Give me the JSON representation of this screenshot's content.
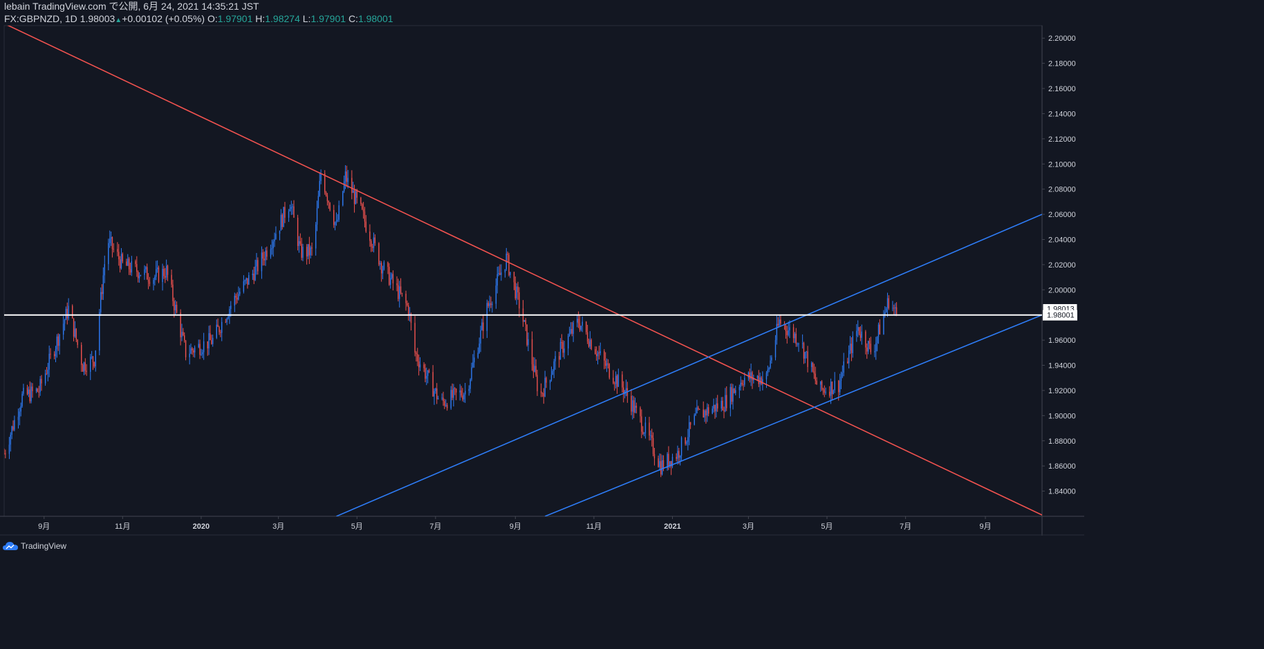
{
  "header": {
    "published": "lebain TradingView.com で公開, 6月 24, 2021 14:35:21 JST",
    "symbol": "FX:GBPNZD, 1D",
    "last": "1.98003",
    "change": "+0.00102 (+0.05%)",
    "o_label": "O:",
    "o_val": "1.97901",
    "h_label": "H:",
    "h_val": "1.98274",
    "l_label": "L:",
    "l_val": "1.97901",
    "c_label": "C:",
    "c_val": "1.98001"
  },
  "footer": {
    "brand": "TradingView"
  },
  "colors": {
    "background": "#131722",
    "up": "#2e7cf6",
    "down": "#f0524f",
    "axis_text": "#d1d4dc",
    "trend_red": "#f0524f",
    "trend_blue": "#2e7cf6"
  },
  "chart_data": {
    "type": "candlestick",
    "symbol": "FX:GBPNZD",
    "interval": "1D",
    "xlim": [
      "2019-08-01",
      "2021-10-15"
    ],
    "ylim": [
      1.82,
      2.21
    ],
    "y_ticks": [
      "2.20000",
      "2.18000",
      "2.16000",
      "2.14000",
      "2.12000",
      "2.10000",
      "2.08000",
      "2.06000",
      "2.04000",
      "2.02000",
      "2.00000",
      "1.98000",
      "1.96000",
      "1.94000",
      "1.92000",
      "1.90000",
      "1.88000",
      "1.86000",
      "1.84000"
    ],
    "x_ticks": [
      {
        "date": "2019-09-01",
        "label": "9月"
      },
      {
        "date": "2019-11-01",
        "label": "11月"
      },
      {
        "date": "2020-01-01",
        "label": "2020"
      },
      {
        "date": "2020-03-01",
        "label": "3月"
      },
      {
        "date": "2020-05-01",
        "label": "5月"
      },
      {
        "date": "2020-07-01",
        "label": "7月"
      },
      {
        "date": "2020-09-01",
        "label": "9月"
      },
      {
        "date": "2020-11-01",
        "label": "11月"
      },
      {
        "date": "2021-01-01",
        "label": "2021"
      },
      {
        "date": "2021-03-01",
        "label": "3月"
      },
      {
        "date": "2021-05-01",
        "label": "5月"
      },
      {
        "date": "2021-07-01",
        "label": "7月"
      },
      {
        "date": "2021-09-01",
        "label": "9月"
      }
    ],
    "price_path": [
      [
        "2019-08-01",
        1.87
      ],
      [
        "2019-08-15",
        1.915
      ],
      [
        "2019-08-28",
        1.92
      ],
      [
        "2019-09-20",
        1.985
      ],
      [
        "2019-10-01",
        1.94
      ],
      [
        "2019-10-10",
        1.945
      ],
      [
        "2019-10-20",
        2.04
      ],
      [
        "2019-11-01",
        2.02
      ],
      [
        "2019-11-25",
        2.01
      ],
      [
        "2019-12-05",
        2.015
      ],
      [
        "2019-12-20",
        1.95
      ],
      [
        "2020-01-10",
        1.96
      ],
      [
        "2020-01-25",
        1.99
      ],
      [
        "2020-02-15",
        2.02
      ],
      [
        "2020-03-01",
        2.05
      ],
      [
        "2020-03-10",
        2.07
      ],
      [
        "2020-03-18",
        2.03
      ],
      [
        "2020-03-28",
        2.03
      ],
      [
        "2020-04-03",
        2.093
      ],
      [
        "2020-04-15",
        2.05
      ],
      [
        "2020-04-22",
        2.09
      ],
      [
        "2020-05-05",
        2.06
      ],
      [
        "2020-05-20",
        2.02
      ],
      [
        "2020-06-10",
        1.985
      ],
      [
        "2020-06-15",
        1.95
      ],
      [
        "2020-07-05",
        1.91
      ],
      [
        "2020-07-25",
        1.92
      ],
      [
        "2020-08-10",
        1.985
      ],
      [
        "2020-08-25",
        2.025
      ],
      [
        "2020-09-05",
        1.985
      ],
      [
        "2020-09-20",
        1.915
      ],
      [
        "2020-10-05",
        1.95
      ],
      [
        "2020-10-20",
        1.975
      ],
      [
        "2020-11-10",
        1.94
      ],
      [
        "2020-11-25",
        1.92
      ],
      [
        "2020-12-10",
        1.89
      ],
      [
        "2020-12-23",
        1.86
      ],
      [
        "2021-01-05",
        1.87
      ],
      [
        "2021-01-20",
        1.9
      ],
      [
        "2021-02-10",
        1.91
      ],
      [
        "2021-02-25",
        1.93
      ],
      [
        "2021-03-15",
        1.93
      ],
      [
        "2021-03-25",
        1.975
      ],
      [
        "2021-04-10",
        1.96
      ],
      [
        "2021-04-25",
        1.92
      ],
      [
        "2021-05-10",
        1.925
      ],
      [
        "2021-05-25",
        1.97
      ],
      [
        "2021-06-05",
        1.95
      ],
      [
        "2021-06-18",
        1.992
      ],
      [
        "2021-06-24",
        1.98
      ]
    ],
    "lines": [
      {
        "name": "descending-trendline",
        "color": "red",
        "from": [
          "2019-07-25",
          2.215
        ],
        "to": [
          "2021-10-15",
          1.821
        ]
      },
      {
        "name": "channel-upper",
        "color": "blue",
        "from": [
          "2020-04-15",
          1.82
        ],
        "to": [
          "2021-10-15",
          2.06
        ]
      },
      {
        "name": "channel-lower",
        "color": "blue",
        "from": [
          "2020-09-24",
          1.82
        ],
        "to": [
          "2021-10-15",
          1.98
        ]
      },
      {
        "name": "horizontal-level",
        "color": "white",
        "from": [
          "2019-08-01",
          1.98
        ],
        "to": [
          "2021-10-15",
          1.98
        ]
      }
    ],
    "last_price": "1.98001",
    "price_marker": "1.98013"
  }
}
